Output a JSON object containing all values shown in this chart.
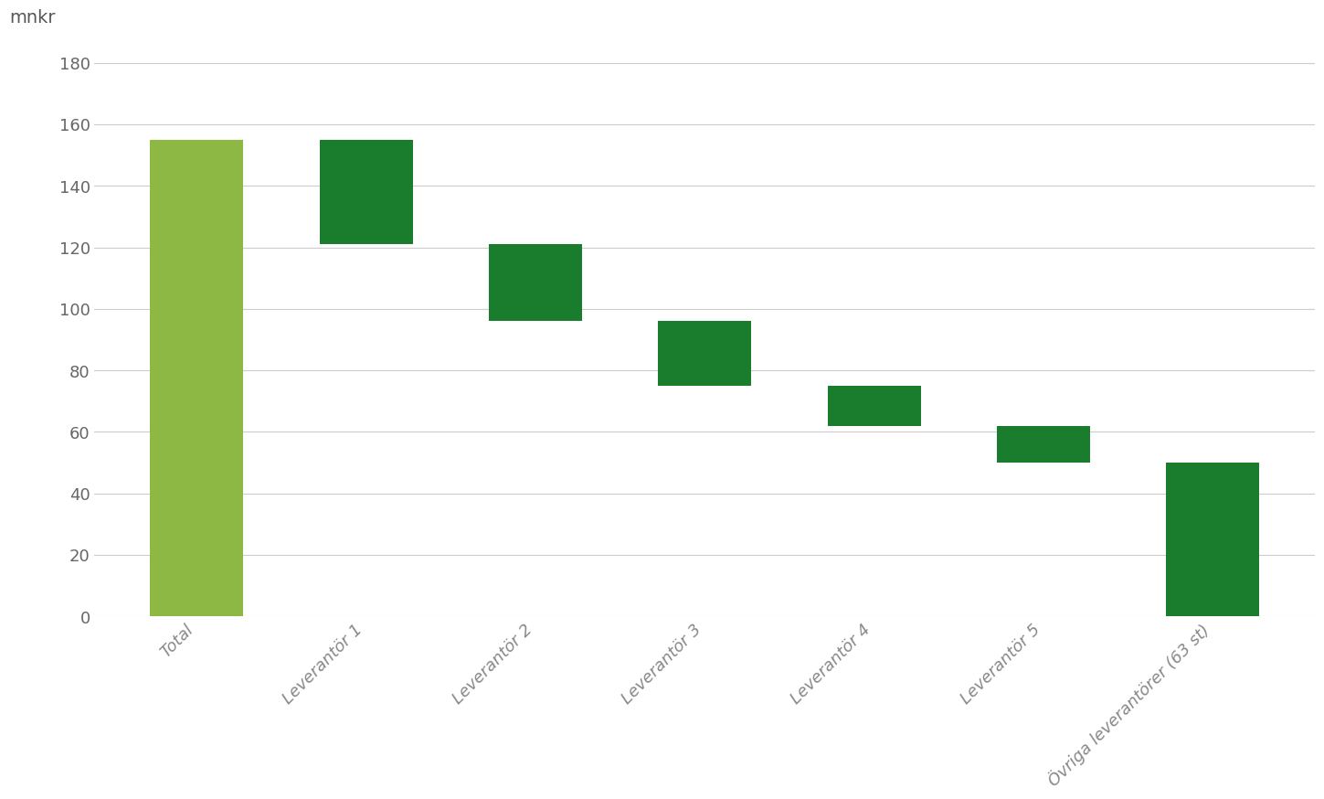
{
  "categories": [
    "Total",
    "Leverantör 1",
    "Leverantör 2",
    "Leverantör 3",
    "Leverantör 4",
    "Leverantör 5",
    "Övriga leverantörer (63 st)"
  ],
  "bar_bottoms": [
    0,
    121,
    96,
    75,
    62,
    50,
    0
  ],
  "bar_heights": [
    155,
    34,
    25,
    21,
    13,
    12,
    50
  ],
  "bar_colors": [
    "#8db843",
    "#1a7d2e",
    "#1a7d2e",
    "#1a7d2e",
    "#1a7d2e",
    "#1a7d2e",
    "#1a7d2e"
  ],
  "ylabel": "mnkr",
  "ylim": [
    0,
    190
  ],
  "yticks": [
    0,
    20,
    40,
    60,
    80,
    100,
    120,
    140,
    160,
    180
  ],
  "background_color": "#ffffff",
  "plot_bg_color": "#ffffff",
  "grid_color": "#cccccc",
  "tick_label_color": "#666666",
  "ylabel_color": "#555555",
  "xlabel_color": "#888888",
  "bar_width": 0.55
}
